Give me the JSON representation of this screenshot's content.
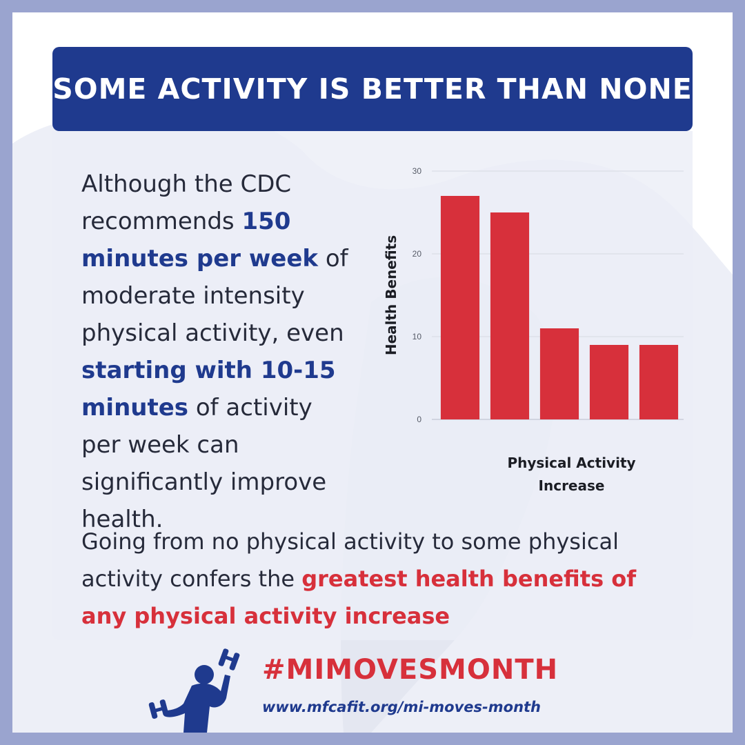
{
  "title": "SOME ACTIVITY IS BETTER THAN NONE",
  "intro": {
    "t1": "Although the CDC recommends ",
    "b1": "150 minutes per week",
    "t2": " of moderate intensity physical activity, even ",
    "b2": "starting with 10-15 minutes",
    "t3": " of activity per week can significantly improve health."
  },
  "conclusion": {
    "t1": "Going from no physical activity to some physical activity confers the ",
    "r1": "greatest health benefits of any physical activity increase"
  },
  "chart_data": {
    "type": "bar",
    "categories": [
      "",
      "",
      "",
      "",
      ""
    ],
    "values": [
      27,
      25,
      11,
      9,
      9
    ],
    "xlabel": "Physical Activity Increase",
    "ylabel": "Health Benefits",
    "ylim": [
      0,
      30
    ],
    "yticks": [
      0,
      10,
      20,
      30
    ],
    "grid": true,
    "bar_color": "#d7303b"
  },
  "footer": {
    "hashtag": "#MIMOVESMONTH",
    "url": "www.mfcafit.org/mi-moves-month"
  },
  "colors": {
    "frame": "#9aa4cf",
    "navy": "#1f3a8e",
    "red": "#d7303b"
  },
  "icons": [
    "michigan-map-shape",
    "weightlifter-icon"
  ]
}
